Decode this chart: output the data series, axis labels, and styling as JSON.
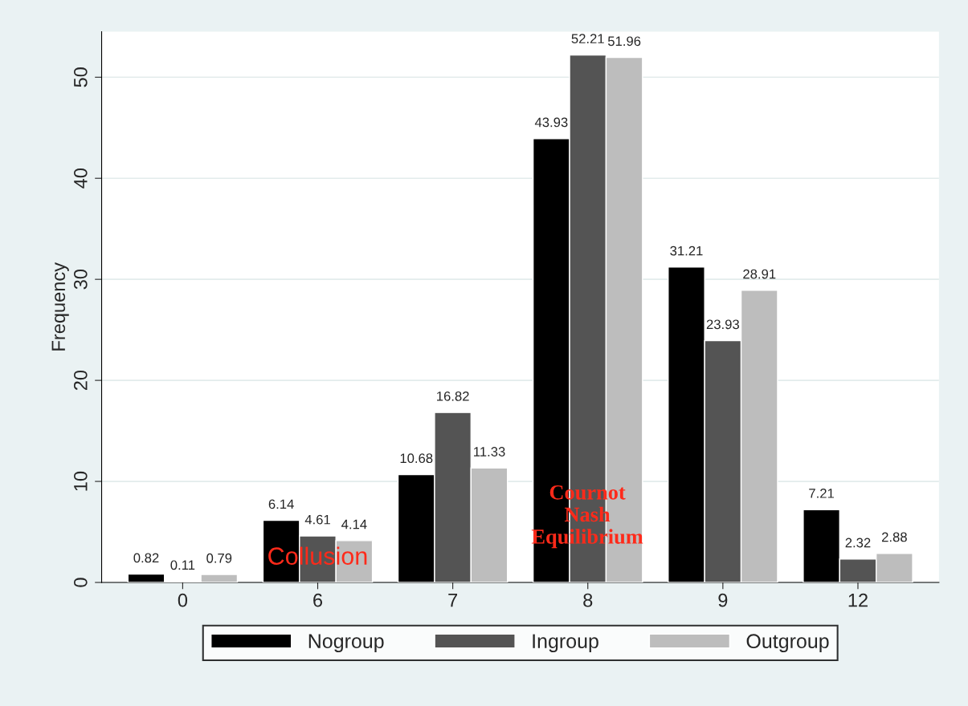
{
  "chart_data": {
    "type": "bar",
    "ylabel": "Frequency",
    "categories": [
      "0",
      "6",
      "7",
      "8",
      "9",
      "12"
    ],
    "series": [
      {
        "name": "Nogroup",
        "color": "#000000",
        "values": [
          0.82,
          6.14,
          10.68,
          43.93,
          31.21,
          7.21
        ]
      },
      {
        "name": "Ingroup",
        "color": "#545454",
        "values": [
          0.11,
          4.61,
          16.82,
          52.21,
          23.93,
          2.32
        ]
      },
      {
        "name": "Outgroup",
        "color": "#bdbdbd",
        "values": [
          0.79,
          4.14,
          11.33,
          51.96,
          28.91,
          2.88
        ]
      }
    ],
    "ylim": [
      0,
      54.5
    ],
    "yticks": [
      0,
      10,
      20,
      30,
      40,
      50
    ],
    "grid": "y",
    "data_labels": true,
    "legend": "bottom",
    "annotations": [
      "Collusion",
      "Cournot\nNash\nEquilibrium"
    ]
  }
}
